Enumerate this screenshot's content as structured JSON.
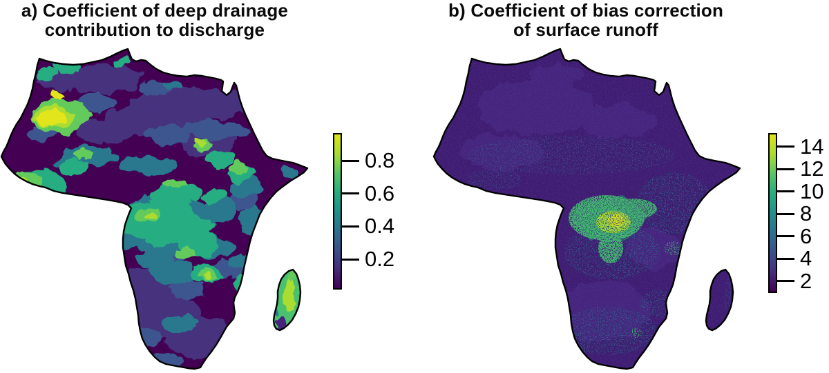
{
  "figure": {
    "background_color": "#ffffff",
    "colormap_stops": [
      "#440154",
      "#472d7b",
      "#3b518b",
      "#2c718e",
      "#21918c",
      "#27ad81",
      "#58c765",
      "#aadc32",
      "#dfe318"
    ],
    "panels": [
      {
        "id": "a",
        "title_line1": "a) Coefficient of deep drainage",
        "title_line2": "contribution to discharge",
        "colorbar": {
          "scale_min": 0.015,
          "scale_max": 0.97,
          "ticks": [
            {
              "value": 0.8,
              "label": "0.8"
            },
            {
              "value": 0.6,
              "label": "0.6"
            },
            {
              "value": 0.4,
              "label": "0.4"
            },
            {
              "value": 0.2,
              "label": "0.2"
            }
          ]
        }
      },
      {
        "id": "b",
        "title_line1": "b) Coefficient of bias correction",
        "title_line2": "of surface runoff",
        "colorbar": {
          "scale_min": 0.95,
          "scale_max": 15.2,
          "ticks": [
            {
              "value": 14,
              "label": "14"
            },
            {
              "value": 12,
              "label": "12"
            },
            {
              "value": 10,
              "label": "10"
            },
            {
              "value": 8,
              "label": "8"
            },
            {
              "value": 6,
              "label": "6"
            },
            {
              "value": 4,
              "label": "4"
            },
            {
              "value": 2,
              "label": "2"
            }
          ]
        }
      }
    ]
  },
  "chart_data": [
    {
      "type": "heatmap",
      "title": "a) Coefficient of deep drainage contribution to discharge",
      "geography": "Africa with Madagascar",
      "colormap": "viridis",
      "colorbar_ticks": [
        0.8,
        0.6,
        0.4,
        0.2
      ],
      "colorbar_range_approx": [
        0,
        1
      ],
      "legend_position": "right",
      "high_value_regions": [
        "west-central Sahara / Mali-Algeria (bright yellow ~0.9)",
        "Guinea coast of West Africa (~0.7-0.9)",
        "Congo basin mosaic (~0.4-0.7)",
        "Ethiopian highlands (~0.6-0.8)",
        "Sudan/Chad isolated spot (~0.8)",
        "Zambia/Mozambique patches (~0.6-0.8)",
        "Madagascar (~0.5-0.8, purple southern tip)"
      ],
      "low_value_regions": [
        "central and eastern Sahara (<0.2)",
        "Horn of Africa interior (<0.2)",
        "southern Africa interior (<0.2)"
      ]
    },
    {
      "type": "heatmap",
      "title": "b) Coefficient of bias correction of surface runoff",
      "geography": "Africa with Madagascar",
      "colormap": "viridis",
      "colorbar_ticks": [
        14,
        12,
        10,
        8,
        6,
        4,
        2
      ],
      "colorbar_range_approx": [
        1,
        15
      ],
      "legend_position": "right",
      "high_value_regions": [
        "Congo basin speckled green-yellow cluster (~8-14)",
        "East Africa scattered teal speckles (~4-6)",
        "small bright speckle in eastern South Africa"
      ],
      "low_value_regions": [
        "nearly the whole continent uniform dark purple (~1-3)",
        "Madagascar (~1-2)"
      ]
    }
  ]
}
